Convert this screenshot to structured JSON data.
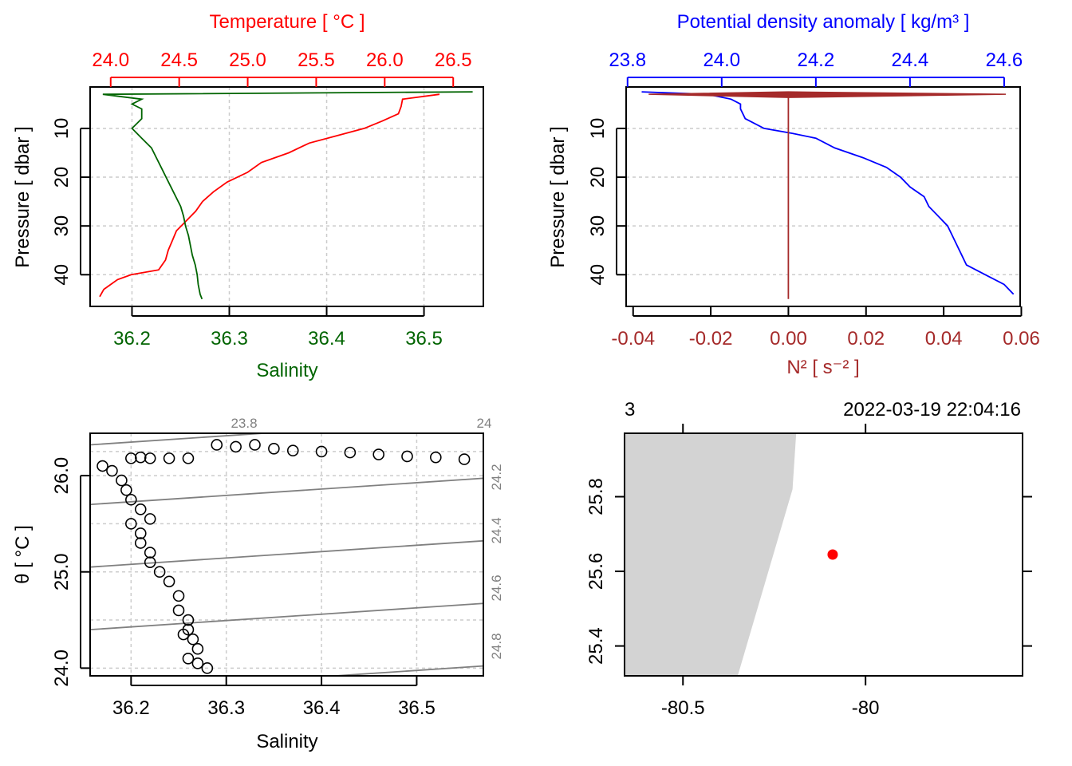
{
  "chart_data": [
    {
      "type": "line",
      "panel": "temperature-salinity-profile",
      "title": "Temperature [ °C ]",
      "xlabel": "Salinity",
      "ylabel": "Pressure [ dbar ]",
      "ylim": [
        46.5,
        1.5
      ],
      "yticks": [
        10,
        20,
        30,
        40
      ],
      "top_axis": {
        "label": "Temperature [ °C ]",
        "range": [
          23.85,
          26.72
        ],
        "ticks": [
          "24.0",
          "24.5",
          "25.0",
          "25.5",
          "26.0",
          "26.5"
        ],
        "color": "#ff0000"
      },
      "bottom_axis": {
        "label": "Salinity",
        "range": [
          36.157,
          36.561
        ],
        "ticks": [
          "36.2",
          "36.3",
          "36.4",
          "36.5"
        ],
        "color": "#006400"
      },
      "series": [
        {
          "name": "Temperature",
          "color": "#ff0000",
          "pressure": [
            3,
            4,
            5.5,
            7,
            8.5,
            10,
            11.5,
            13,
            15,
            17,
            19,
            21,
            23,
            25,
            27,
            29,
            31,
            33,
            35,
            37,
            39,
            40,
            41,
            42,
            43,
            44.5
          ],
          "values": [
            26.4,
            26.13,
            26.12,
            26.1,
            25.98,
            25.85,
            25.65,
            25.45,
            25.3,
            25.1,
            25.0,
            24.85,
            24.75,
            24.67,
            24.62,
            24.55,
            24.48,
            24.45,
            24.42,
            24.4,
            24.35,
            24.15,
            24.05,
            24.0,
            23.95,
            23.92
          ]
        },
        {
          "name": "Salinity",
          "color": "#006400",
          "pressure": [
            2.5,
            3,
            4,
            5,
            6,
            8,
            10,
            12,
            14,
            16,
            18,
            20,
            22,
            24,
            26,
            28,
            30,
            32,
            34,
            36,
            38,
            40,
            42,
            44,
            45
          ],
          "values": [
            36.55,
            36.17,
            36.21,
            36.2,
            36.21,
            36.21,
            36.2,
            36.21,
            36.22,
            36.225,
            36.23,
            36.235,
            36.24,
            36.245,
            36.25,
            36.253,
            36.255,
            36.258,
            36.26,
            36.262,
            36.265,
            36.267,
            36.268,
            36.27,
            36.272
          ]
        }
      ]
    },
    {
      "type": "line",
      "panel": "density-n2-profile",
      "title": "Potential density anomaly [ kg/m³ ]",
      "xlabel": "N² [ s⁻² ]",
      "ylabel": "Pressure [ dbar ]",
      "ylim": [
        46.5,
        1.5
      ],
      "yticks": [
        10,
        20,
        30,
        40
      ],
      "top_axis": {
        "label": "Potential density anomaly [ kg/m³ ]",
        "range": [
          23.797,
          24.634
        ],
        "ticks": [
          "23.8",
          "24.0",
          "24.2",
          "24.4",
          "24.6"
        ],
        "color": "#0000ff"
      },
      "bottom_axis": {
        "label": "N² [ s⁻² ]",
        "range": [
          -0.0418,
          0.0597
        ],
        "ticks": [
          "-0.04",
          "-0.02",
          "0.00",
          "0.02",
          "0.04",
          "0.06"
        ],
        "color": "#a52a2a"
      },
      "series": [
        {
          "name": "Potential density anomaly",
          "color": "#0000ff",
          "pressure": [
            2.5,
            3,
            4,
            5,
            6,
            8,
            10,
            11,
            12,
            14,
            16,
            18,
            20,
            22,
            24,
            26,
            28,
            30,
            32,
            34,
            36,
            38,
            40,
            42,
            44
          ],
          "values": [
            23.83,
            23.97,
            24.02,
            24.04,
            24.04,
            24.05,
            24.09,
            24.15,
            24.2,
            24.24,
            24.3,
            24.35,
            24.38,
            24.4,
            24.43,
            24.44,
            24.46,
            24.48,
            24.49,
            24.5,
            24.51,
            24.52,
            24.56,
            24.6,
            24.62
          ]
        },
        {
          "name": "N2",
          "color": "#a52a2a",
          "pressure": [
            3,
            5,
            10,
            15,
            20,
            25,
            30,
            35,
            40,
            45
          ],
          "values": [
            0.0,
            0.0,
            0.0,
            0.0,
            0.0,
            0.0,
            0.0,
            0.0,
            0.0,
            0.0
          ],
          "surface_spike": [
            -0.036,
            0.056
          ]
        }
      ]
    },
    {
      "type": "scatter",
      "panel": "ts-diagram",
      "title": "",
      "xlabel": "Salinity",
      "ylabel": "θ [ °C ]",
      "xlim": [
        36.157,
        36.57
      ],
      "ylim": [
        23.92,
        26.44
      ],
      "xticks": [
        "36.2",
        "36.3",
        "36.4",
        "36.5"
      ],
      "yticks": [
        "24.0",
        "25.0",
        "26.0"
      ],
      "density_contours": [
        "23.8",
        "24",
        "24.2",
        "24.4",
        "24.6",
        "24.8"
      ],
      "x": [
        36.29,
        36.31,
        36.33,
        36.35,
        36.37,
        36.4,
        36.43,
        36.46,
        36.49,
        36.52,
        36.55,
        36.2,
        36.21,
        36.22,
        36.24,
        36.26,
        36.17,
        36.18,
        36.19,
        36.195,
        36.2,
        36.21,
        36.22,
        36.2,
        36.21,
        36.21,
        36.22,
        36.22,
        36.23,
        36.24,
        36.25,
        36.25,
        36.26,
        36.26,
        36.255,
        36.265,
        36.27,
        36.26,
        36.27,
        36.28
      ],
      "y": [
        26.32,
        26.3,
        26.32,
        26.28,
        26.26,
        26.25,
        26.24,
        26.22,
        26.2,
        26.19,
        26.17,
        26.18,
        26.19,
        26.18,
        26.18,
        26.18,
        26.1,
        26.05,
        25.95,
        25.85,
        25.75,
        25.65,
        25.55,
        25.5,
        25.4,
        25.3,
        25.2,
        25.1,
        25.0,
        24.9,
        24.75,
        24.6,
        24.5,
        24.4,
        24.35,
        24.3,
        24.2,
        24.1,
        24.05,
        24.0
      ]
    },
    {
      "type": "map",
      "panel": "station-map",
      "top_left_label": "3",
      "top_right_label": "2022-03-19 22:04:16",
      "xlim": [
        -80.66,
        -79.57
      ],
      "ylim": [
        25.32,
        25.97
      ],
      "xticks": [
        "-80.5",
        "-80"
      ],
      "yticks": [
        "25.4",
        "25.6",
        "25.8"
      ],
      "coastline": [
        [
          -80.66,
          25.97
        ],
        [
          -80.19,
          25.97
        ],
        [
          -80.2,
          25.82
        ],
        [
          -80.35,
          25.32
        ],
        [
          -80.66,
          25.32
        ]
      ],
      "station": {
        "lon": -80.09,
        "lat": 25.645
      },
      "land_color": "#d3d3d3",
      "station_color": "#ff0000"
    }
  ]
}
